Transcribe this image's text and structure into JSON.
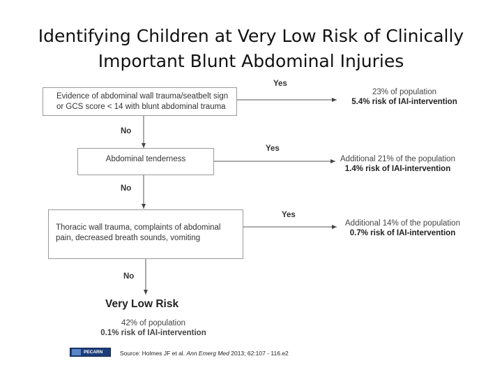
{
  "title_line1": "Identifying Children at Very Low Risk of Clinically",
  "title_line2": "Important Blunt Abdominal Injuries",
  "steps": [
    {
      "criterion_lines": [
        "Evidence of abdominal wall trauma/seatbelt sign",
        "or GCS score < 14  with blunt abdominal trauma"
      ],
      "yes_label": "Yes",
      "no_label": "No",
      "result_population": "23% of population",
      "result_risk": "5.4% risk of IAI-intervention"
    },
    {
      "criterion_lines": [
        "Abdominal tenderness"
      ],
      "yes_label": "Yes",
      "no_label": "No",
      "result_population": "Additional 21% of the population",
      "result_risk": "1.4% risk of IAI-intervention"
    },
    {
      "criterion_lines": [
        "Thoracic wall trauma, complaints of abdominal",
        "pain, decreased breath sounds, vomiting"
      ],
      "yes_label": "Yes",
      "no_label": "No",
      "result_population": "Additional 14% of the population",
      "result_risk": "0.7% risk of IAI-intervention"
    }
  ],
  "outcome": {
    "title": "Very Low Risk",
    "population": "42% of population",
    "risk": "0.1% risk of IAI-intervention"
  },
  "logo_text": "PECARN",
  "source": {
    "prefix": "Source: Holmes JF et al.",
    "journal": "Ann Emerg Med",
    "suffix": "2013; 62:107 - 116.e2"
  }
}
